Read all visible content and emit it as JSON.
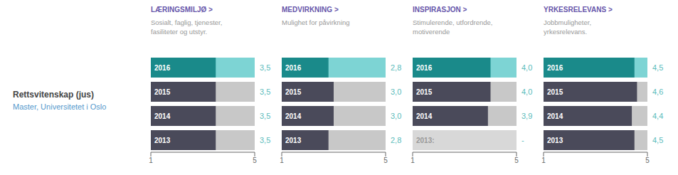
{
  "title": "Rettsvitenskap (jus)",
  "subtitle": "Master, Universitetet i Oslo",
  "chart_data": [
    {
      "type": "bar",
      "orientation": "horizontal",
      "title": "LÆRINGSMILJØ >",
      "subtitle": "Sosialt, faglig, tjenester,\nfasiliteter og utstyr.",
      "categories": [
        "2016",
        "2015",
        "2014",
        "2013"
      ],
      "values": [
        3.5,
        3.5,
        3.5,
        3.5
      ],
      "value_labels": [
        "3,5",
        "3,5",
        "3,5",
        "3,5"
      ],
      "data_labels": true,
      "colors": [
        "#1a8a8a",
        "#4a4a5a",
        "#4a4a5a",
        "#4a4a5a"
      ],
      "xlim": [
        1,
        5
      ],
      "xticks": [
        1,
        5
      ]
    },
    {
      "type": "bar",
      "orientation": "horizontal",
      "title": "MEDVIRKNING >",
      "subtitle": "Mulighet for påvirkning",
      "categories": [
        "2016",
        "2015",
        "2014",
        "2013"
      ],
      "values": [
        2.8,
        3.0,
        3.0,
        2.8
      ],
      "value_labels": [
        "2,8",
        "3,0",
        "3,0",
        "2,8"
      ],
      "data_labels": true,
      "colors": [
        "#1a8a8a",
        "#4a4a5a",
        "#4a4a5a",
        "#4a4a5a"
      ],
      "xlim": [
        1,
        5
      ],
      "xticks": [
        1,
        5
      ]
    },
    {
      "type": "bar",
      "orientation": "horizontal",
      "title": "INSPIRASJON >",
      "subtitle": "Stimulerende, utfordrende,\nmotiverende",
      "categories": [
        "2016",
        "2015",
        "2014",
        "2013:"
      ],
      "values": [
        4.0,
        4.0,
        3.9,
        null
      ],
      "value_labels": [
        "4,0",
        "4,0",
        "3,9",
        "-"
      ],
      "data_labels": true,
      "colors": [
        "#1a8a8a",
        "#4a4a5a",
        "#4a4a5a",
        "#d8d8d8"
      ],
      "xlim": [
        1,
        5
      ],
      "xticks": [
        1,
        5
      ]
    },
    {
      "type": "bar",
      "orientation": "horizontal",
      "title": "YRKESRELEVANS >",
      "subtitle": "Jobbmuligheter,\nyrkesrelevans.",
      "categories": [
        "2016",
        "2015",
        "2014",
        "2013"
      ],
      "values": [
        4.5,
        4.6,
        4.4,
        4.5
      ],
      "value_labels": [
        "4,5",
        "4,6",
        "4,4",
        "4,5"
      ],
      "data_labels": true,
      "colors": [
        "#1a8a8a",
        "#4a4a5a",
        "#4a4a5a",
        "#4a4a5a"
      ],
      "xlim": [
        1,
        5
      ],
      "xticks": [
        1,
        5
      ]
    }
  ]
}
